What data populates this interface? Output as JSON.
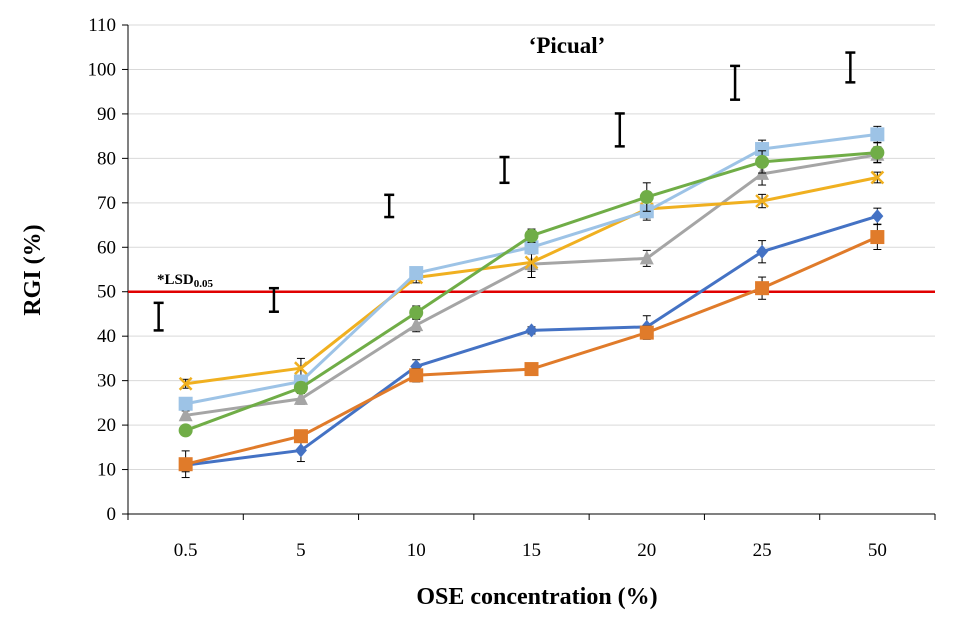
{
  "chart_data": {
    "type": "line",
    "title": "‘Picual’",
    "xlabel": "OSE concentration (%)",
    "ylabel": "RGI (%)",
    "categories": [
      "0.5",
      "5",
      "10",
      "15",
      "20",
      "25",
      "50"
    ],
    "ylim": [
      0,
      110
    ],
    "yticks": [
      0,
      10,
      20,
      30,
      40,
      50,
      60,
      70,
      80,
      90,
      100,
      110
    ],
    "grid": true,
    "legend": "none",
    "series": [
      {
        "color": "#4472C4",
        "marker": "diamond",
        "values": [
          11,
          14.3,
          33.2,
          41.3,
          42.1,
          59,
          67
        ],
        "errors": [
          1.5,
          2.5,
          1.5,
          0.8,
          2.5,
          2.5,
          1.8
        ]
      },
      {
        "color": "#E07B2A",
        "marker": "square",
        "values": [
          11.2,
          17.5,
          31.2,
          32.6,
          40.8,
          50.8,
          62.3
        ],
        "errors": [
          3,
          1.2,
          1.5,
          0.8,
          1.5,
          2.5,
          2.8
        ]
      },
      {
        "color": "#A5A5A5",
        "marker": "triangle",
        "values": [
          22.2,
          25.9,
          42.5,
          56.2,
          57.5,
          76.5,
          80.8
        ],
        "errors": [
          1,
          1.2,
          1.5,
          3,
          1.8,
          2.5,
          1.8
        ]
      },
      {
        "color": "#F0B020",
        "marker": "x",
        "values": [
          29.3,
          32.8,
          53.2,
          56.6,
          68.6,
          70.4,
          75.7
        ],
        "errors": [
          1,
          2.2,
          1.2,
          2,
          2,
          1.5,
          1.2
        ]
      },
      {
        "color": "#9DC3E6",
        "marker": "square",
        "values": [
          24.8,
          29.8,
          54.2,
          60,
          68.1,
          82.1,
          85.4
        ],
        "errors": [
          1,
          1.2,
          1.2,
          1.5,
          2,
          2,
          1.8
        ]
      },
      {
        "color": "#70AD47",
        "marker": "circle",
        "values": [
          18.8,
          28.4,
          45.3,
          62.6,
          71.3,
          79.2,
          81.3
        ],
        "errors": [
          0.8,
          1.2,
          1.5,
          1.5,
          3.2,
          2.5,
          2.2
        ]
      }
    ],
    "reference_line": {
      "y": 50,
      "color": "#E00000"
    },
    "lsd": {
      "label_main": "*LSD",
      "label_sub": "0.05",
      "bars": [
        [
          41.3,
          47.5
        ],
        [
          45.5,
          50.8
        ],
        [
          66.8,
          71.8
        ],
        [
          74.5,
          80.3
        ],
        [
          82.7,
          90.1
        ],
        [
          93.2,
          100.8
        ],
        [
          97.1,
          103.8
        ]
      ]
    }
  }
}
